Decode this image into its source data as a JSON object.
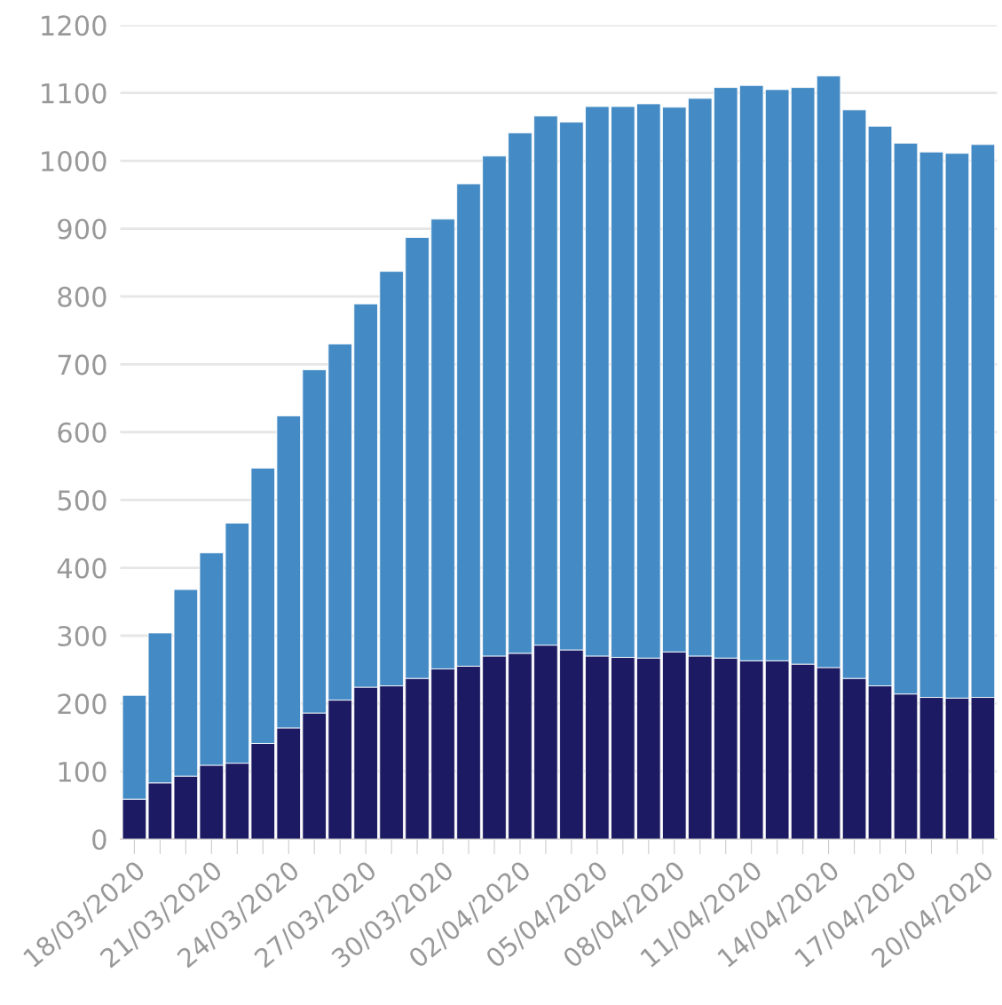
{
  "chart_data": {
    "type": "bar",
    "stacked": true,
    "categories": [
      "18/03/2020",
      null,
      null,
      "21/03/2020",
      null,
      null,
      "24/03/2020",
      null,
      null,
      "27/03/2020",
      null,
      null,
      "30/03/2020",
      null,
      null,
      "02/04/2020",
      null,
      null,
      "05/04/2020",
      null,
      null,
      "08/04/2020",
      null,
      null,
      "11/04/2020",
      null,
      null,
      "14/04/2020",
      null,
      null,
      "17/04/2020",
      null,
      null,
      "20/04/2020"
    ],
    "series": [
      {
        "color": "#1c1a63",
        "values": [
          59,
          83,
          93,
          109,
          112,
          141,
          164,
          186,
          205,
          224,
          226,
          237,
          251,
          255,
          270,
          274,
          286,
          279,
          270,
          268,
          267,
          276,
          270,
          267,
          263,
          263,
          258,
          253,
          237,
          226,
          214,
          209,
          208,
          209
        ]
      },
      {
        "color": "#448bc5",
        "values": [
          153,
          221,
          275,
          313,
          354,
          406,
          460,
          506,
          525,
          565,
          611,
          650,
          663,
          711,
          737,
          767,
          780,
          778,
          810,
          812,
          817,
          803,
          822,
          841,
          848,
          842,
          850,
          872,
          838,
          825,
          812,
          804,
          803,
          815
        ]
      }
    ],
    "ylim": [
      0,
      1200
    ],
    "yticks": [
      0,
      100,
      200,
      300,
      400,
      500,
      600,
      700,
      800,
      900,
      1000,
      1100,
      1200
    ],
    "grid": "y"
  }
}
